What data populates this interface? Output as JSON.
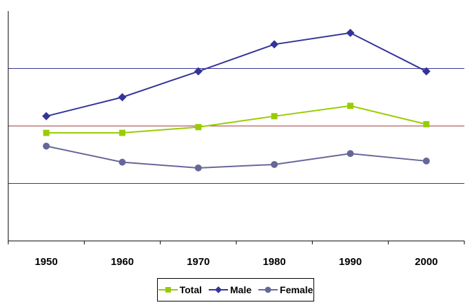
{
  "chart_data": {
    "type": "line",
    "title": "",
    "xlabel": "",
    "ylabel": "",
    "categories": [
      "1950",
      "1960",
      "1970",
      "1980",
      "1990",
      "2000"
    ],
    "ylim": [
      0,
      4
    ],
    "gridlines": [
      1,
      2,
      3
    ],
    "series": [
      {
        "name": "Total",
        "color": "#99cc00",
        "marker": "square",
        "values": [
          1.88,
          1.88,
          1.98,
          2.17,
          2.35,
          2.03
        ]
      },
      {
        "name": "Male",
        "color": "#333399",
        "marker": "diamond",
        "values": [
          2.17,
          2.5,
          2.95,
          3.42,
          3.62,
          2.95
        ]
      },
      {
        "name": "Female",
        "color": "#666699",
        "marker": "circle",
        "values": [
          1.65,
          1.37,
          1.27,
          1.33,
          1.52,
          1.39
        ]
      }
    ],
    "gridline_colors": [
      "#333399",
      "#993333",
      "#333399"
    ],
    "legend_position": "bottom"
  }
}
